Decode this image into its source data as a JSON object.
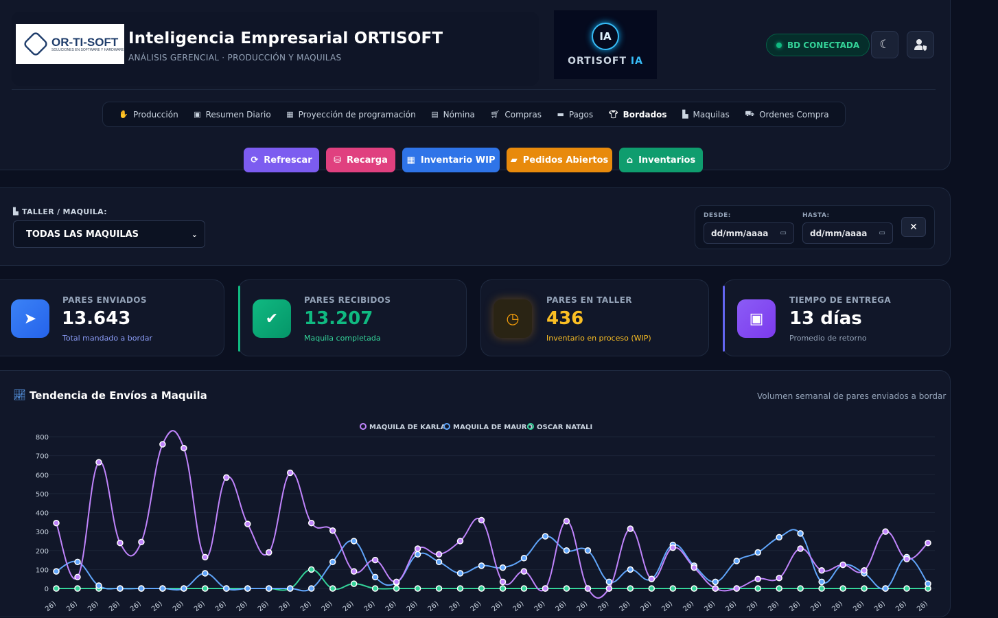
{
  "header": {
    "logo_left_text": "OR-TI-SOFT",
    "logo_left_sub": "SOLUCIONES EN SOFTWARE Y HARDWARE",
    "title": "Inteligencia Empresarial ORTISOFT",
    "subtitle": "ANÁLISIS GERENCIAL · PRODUCCIÓN Y MAQUILAS",
    "logo_right_text_a": "ORTISOFT",
    "logo_right_text_b": "IA",
    "logo_right_badge": "IA",
    "db_status": "BD CONECTADA",
    "theme_icon": "moon-icon",
    "user_icon": "user-shield-icon"
  },
  "nav": [
    {
      "label": "Producción",
      "icon": "hand-holding-icon",
      "active": false
    },
    {
      "label": "Resumen Diario",
      "icon": "calendar-day-icon",
      "active": false
    },
    {
      "label": "Proyección de programación",
      "icon": "calendar-alt-icon",
      "active": false
    },
    {
      "label": "Nómina",
      "icon": "file-invoice-icon",
      "active": false
    },
    {
      "label": "Compras",
      "icon": "cart-icon",
      "active": false
    },
    {
      "label": "Pagos",
      "icon": "credit-card-icon",
      "active": false
    },
    {
      "label": "Bordados",
      "icon": "tshirt-icon",
      "active": true
    },
    {
      "label": "Maquilas",
      "icon": "industry-icon",
      "active": false
    },
    {
      "label": "Ordenes Compra",
      "icon": "truck-loading-icon",
      "active": false
    }
  ],
  "actions": [
    {
      "label": "Refrescar",
      "icon": "sync-icon",
      "color": "#7c5cf0"
    },
    {
      "label": "Recarga",
      "icon": "database-icon",
      "color": "#e0407f"
    },
    {
      "label": "Inventario WIP",
      "icon": "boxes-icon",
      "color": "#2f74e8"
    },
    {
      "label": "Pedidos Abiertos",
      "icon": "folder-open-icon",
      "color": "#e88a0c"
    },
    {
      "label": "Inventarios",
      "icon": "warehouse-icon",
      "color": "#0f9d6e"
    }
  ],
  "filter": {
    "taller_label": "TALLER / MAQUILA:",
    "selected_maquila": "TODAS LAS MAQUILAS",
    "desde_label": "DESDE:",
    "hasta_label": "HASTA:",
    "desde_value": "dd/mm/aaaa",
    "hasta_value": "dd/mm/aaaa",
    "clear_label": "✕"
  },
  "kpis": [
    {
      "label": "PARES ENVIADOS",
      "value": "13.643",
      "sub": "Total mandado a bordar",
      "color": "#3b82f6",
      "value_color": "#ffffff",
      "sub_color": "#8b9cf6",
      "icon": "paper-plane-icon"
    },
    {
      "label": "PARES RECIBIDOS",
      "value": "13.207",
      "sub": "Maquila completada",
      "color": "#10b981",
      "value_color": "#10b981",
      "sub_color": "#34d399",
      "icon": "check-circle-icon"
    },
    {
      "label": "PARES EN TALLER",
      "value": "436",
      "sub": "Inventario en proceso (WIP)",
      "color": "#f59e0b",
      "value_color": "#fbbf24",
      "sub_color": "#fbbf24",
      "icon": "clock-icon"
    },
    {
      "label": "TIEMPO DE ENTREGA",
      "value": "13 días",
      "sub": "Promedio de retorno",
      "color": "#8b5cf6",
      "value_color": "#ffffff",
      "sub_color": "#94a3b8",
      "icon": "calendar-icon"
    }
  ],
  "chart": {
    "title": "Tendencia de Envíos a Maquila",
    "subtitle": "Volumen semanal de pares enviados a bordar"
  },
  "chart_data": {
    "type": "line",
    "title": "Tendencia de Envíos a Maquila",
    "ylim": [
      0,
      800
    ],
    "yticks": [
      0,
      100,
      200,
      300,
      400,
      500,
      600,
      700,
      800
    ],
    "x_tick_label_fragment": "26)",
    "legend_placement": "top-center",
    "series": [
      {
        "name": "MAQUILA DE KARLA",
        "color": "#c084fc",
        "values": [
          345,
          60,
          665,
          240,
          245,
          760,
          740,
          165,
          585,
          340,
          190,
          610,
          345,
          305,
          90,
          150,
          35,
          210,
          180,
          250,
          360,
          35,
          90,
          0,
          355,
          0,
          0,
          315,
          50,
          215,
          110,
          0,
          0,
          50,
          55,
          210,
          95,
          125,
          95,
          300,
          155,
          240
        ]
      },
      {
        "name": "MAQUILA DE MAURO",
        "color": "#60a5fa",
        "values": [
          90,
          140,
          15,
          0,
          0,
          0,
          0,
          80,
          0,
          0,
          0,
          0,
          0,
          140,
          250,
          60,
          30,
          180,
          140,
          80,
          120,
          110,
          160,
          275,
          200,
          200,
          35,
          100,
          50,
          230,
          120,
          35,
          145,
          190,
          270,
          290,
          35,
          125,
          80,
          0,
          165,
          25
        ]
      },
      {
        "name": "OSCAR NATALI",
        "color": "#34d399",
        "values": [
          0,
          0,
          0,
          0,
          0,
          0,
          0,
          0,
          0,
          0,
          0,
          0,
          100,
          0,
          25,
          0,
          0,
          0,
          0,
          0,
          0,
          0,
          0,
          0,
          0,
          0,
          0,
          0,
          0,
          0,
          0,
          0,
          0,
          0,
          0,
          0,
          0,
          0,
          0,
          0,
          0,
          0
        ]
      }
    ]
  }
}
